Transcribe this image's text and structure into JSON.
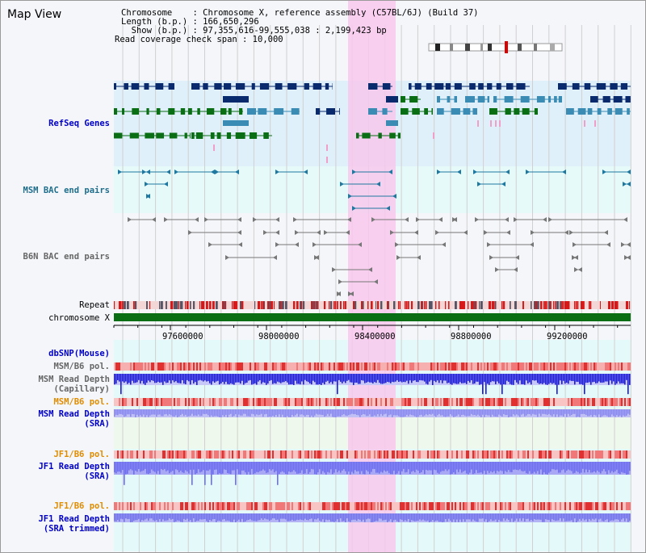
{
  "title": "Map View",
  "info": {
    "chromosome": "Chromosome    : Chromosome X, reference assembly (C57BL/6J) (Build 37)",
    "length": "Length (b.p.) : 166,650,296",
    "show": "  Show (b.p.) : 97,355,616-99,555,038 : 2,199,423 bp",
    "coverage": "Read coverage check span : 10,000"
  },
  "tracks": {
    "refseq": "RefSeq Genes",
    "msm_bac": "MSM BAC end pairs",
    "b6n_bac": "B6N BAC end pairs",
    "repeat": "Repeat",
    "chromosome": "chromosome X",
    "dbsnp": "dbSNP(Mouse)",
    "msm_b6_pol_1": "MSM/B6 pol.",
    "msm_read_depth_cap": "MSM Read Depth\n(Capillary)",
    "msm_b6_pol_2": "MSM/B6 pol.",
    "msm_read_depth_sra": "MSM Read Depth\n(SRA)",
    "jf1_b6_pol_1": "JF1/B6 pol.",
    "jf1_read_depth_sra": "JF1 Read Depth\n(SRA)",
    "jf1_b6_pol_2": "JF1/B6 pol.",
    "jf1_read_depth_trim": "JF1 Read Depth\n(SRA trimmed)"
  },
  "axis": {
    "ticks": [
      "97600000",
      "98000000",
      "98400000",
      "98800000",
      "99200000"
    ]
  },
  "colors": {
    "highlight": "#f8c8ec",
    "refseq_dark": "#0a2a6e",
    "refseq_mid": "#3a8cb4",
    "refseq_green": "#0a6e14",
    "chromosome_bar": "#0a6e14",
    "depth_blue": "#1a1ad8",
    "depth_light": "#6e6ef0"
  }
}
